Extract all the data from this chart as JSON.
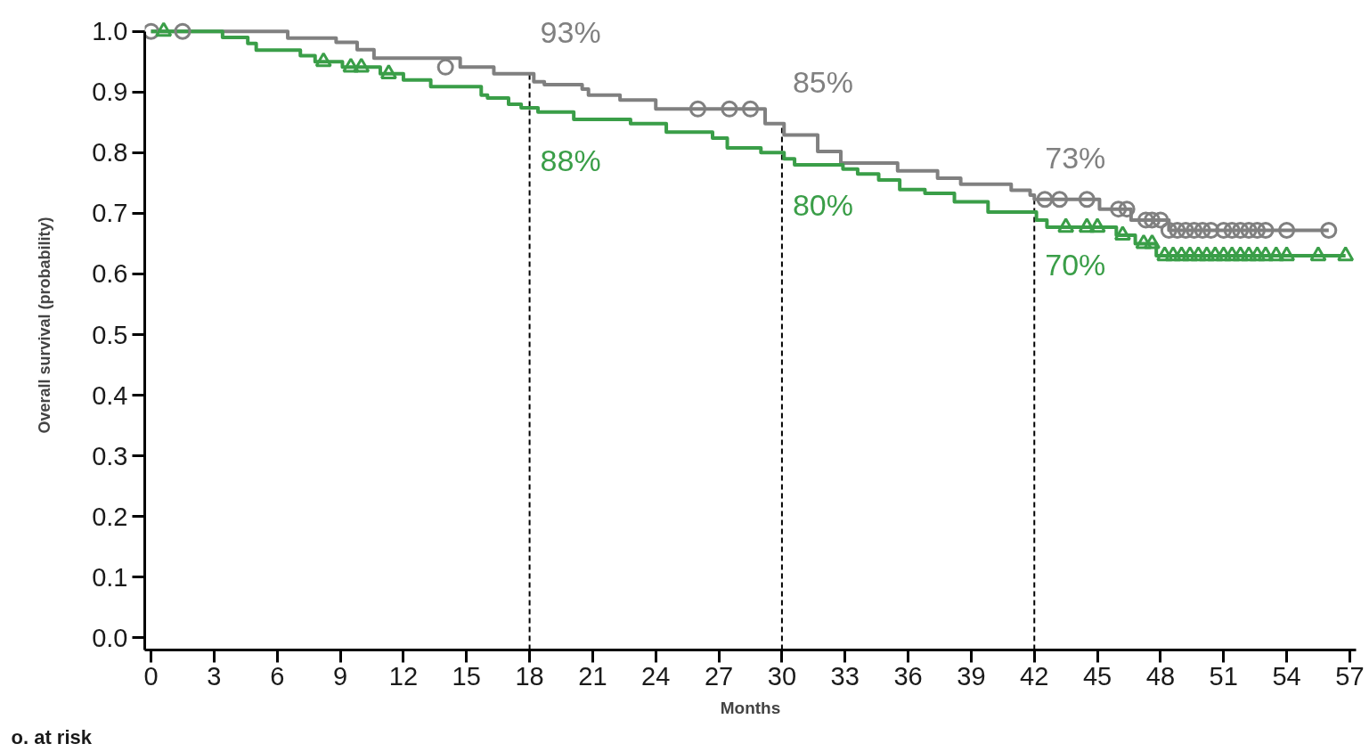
{
  "chart_data": {
    "type": "step",
    "xlabel": "Months",
    "ylabel": "Overall survival (probability)",
    "xlim": [
      -0.3,
      57.3
    ],
    "ylim": [
      -0.02,
      1.0
    ],
    "xticks": [
      0,
      3,
      6,
      9,
      12,
      15,
      18,
      21,
      24,
      27,
      30,
      33,
      36,
      39,
      42,
      45,
      48,
      51,
      54,
      57
    ],
    "yticks": [
      {
        "value": 0,
        "label": "0.0"
      },
      {
        "value": 0.1,
        "label": "0.1"
      },
      {
        "value": 0.2,
        "label": "0.2"
      },
      {
        "value": 0.3,
        "label": "0.3"
      },
      {
        "value": 0.4,
        "label": "0.4"
      },
      {
        "value": 0.5,
        "label": "0.5"
      },
      {
        "value": 0.6,
        "label": "0.6"
      },
      {
        "value": 0.7,
        "label": "0.7"
      },
      {
        "value": 0.8,
        "label": "0.8"
      },
      {
        "value": 0.9,
        "label": "0.9"
      },
      {
        "value": 1.0,
        "label": "1.0"
      }
    ],
    "grid": false,
    "series": [
      {
        "type": "step",
        "color": "#808080",
        "x": [
          0,
          6.5,
          8.8,
          9.8,
          10.6,
          14.7,
          16.3,
          18.2,
          18.7,
          20.5,
          20.8,
          22.3,
          24.0,
          29.2,
          30.1,
          31.7,
          32.8,
          35.5,
          37.4,
          38.5,
          40.9,
          41.8,
          42.0,
          45.1,
          46.6,
          48.4,
          56.0
        ],
        "values": [
          1.0,
          0.989,
          0.982,
          0.97,
          0.956,
          0.941,
          0.93,
          0.917,
          0.912,
          0.905,
          0.895,
          0.887,
          0.872,
          0.848,
          0.829,
          0.802,
          0.783,
          0.77,
          0.758,
          0.748,
          0.738,
          0.73,
          0.723,
          0.707,
          0.689,
          0.672,
          0.672
        ]
      },
      {
        "type": "step",
        "color": "#3a9e48",
        "x": [
          0,
          3.4,
          4.6,
          5.0,
          7.1,
          7.8,
          9.1,
          10.9,
          12.0,
          13.3,
          15.7,
          16.0,
          17.0,
          17.6,
          18.4,
          20.1,
          22.8,
          24.5,
          26.7,
          27.4,
          29.0,
          30.1,
          30.6,
          32.9,
          33.6,
          34.6,
          35.6,
          36.8,
          38.2,
          39.8,
          42.1,
          42.6,
          45.9,
          46.8,
          47.8,
          56.8
        ],
        "values": [
          1.0,
          0.99,
          0.98,
          0.969,
          0.96,
          0.95,
          0.941,
          0.93,
          0.92,
          0.909,
          0.895,
          0.89,
          0.88,
          0.874,
          0.867,
          0.855,
          0.848,
          0.834,
          0.824,
          0.808,
          0.8,
          0.79,
          0.78,
          0.773,
          0.765,
          0.755,
          0.739,
          0.733,
          0.719,
          0.702,
          0.689,
          0.677,
          0.664,
          0.65,
          0.63,
          0.63
        ]
      },
      {
        "type": "scatter",
        "marker": "circle",
        "color": "#808080",
        "x": [
          0,
          1.5,
          14,
          26,
          27.5,
          28.5,
          42.5,
          43.2,
          44.5,
          46,
          46.4,
          47.3,
          47.6,
          48,
          48.4,
          48.8,
          49.2,
          49.6,
          50,
          50.4,
          51,
          51.4,
          51.8,
          52.2,
          52.6,
          53,
          54,
          56
        ],
        "values": [
          1.0,
          1.0,
          0.941,
          0.872,
          0.872,
          0.872,
          0.723,
          0.723,
          0.723,
          0.707,
          0.707,
          0.689,
          0.689,
          0.689,
          0.672,
          0.672,
          0.672,
          0.672,
          0.672,
          0.672,
          0.672,
          0.672,
          0.672,
          0.672,
          0.672,
          0.672,
          0.672,
          0.672
        ]
      },
      {
        "type": "scatter",
        "marker": "triangle",
        "color": "#3a9e48",
        "x": [
          0.6,
          8.2,
          9.5,
          10,
          11.3,
          43.5,
          44.5,
          45,
          46.2,
          47.2,
          47.6,
          48.2,
          48.6,
          49,
          49.4,
          49.8,
          50.2,
          50.6,
          51,
          51.4,
          51.8,
          52.2,
          52.6,
          53,
          53.5,
          54,
          55.5,
          56.8
        ],
        "values": [
          1.0,
          0.95,
          0.941,
          0.941,
          0.93,
          0.677,
          0.677,
          0.677,
          0.664,
          0.65,
          0.65,
          0.63,
          0.63,
          0.63,
          0.63,
          0.63,
          0.63,
          0.63,
          0.63,
          0.63,
          0.63,
          0.63,
          0.63,
          0.63,
          0.63,
          0.63,
          0.63,
          0.63
        ]
      }
    ],
    "ref_lines": [
      {
        "axis": "x",
        "value": 18,
        "color": "#000000",
        "line_style": "dashed"
      },
      {
        "axis": "x",
        "value": 30,
        "color": "#000000",
        "line_style": "dashed"
      },
      {
        "axis": "x",
        "value": 42,
        "color": "#000000",
        "line_style": "dashed"
      }
    ],
    "annotations": [
      {
        "text": "93%",
        "x": 18,
        "y": 0.93
      },
      {
        "text": "88%",
        "x": 18,
        "y": 0.874
      },
      {
        "text": "85%",
        "x": 30,
        "y": 0.848
      },
      {
        "text": "80%",
        "x": 30,
        "y": 0.8
      },
      {
        "text": "73%",
        "x": 42,
        "y": 0.723
      },
      {
        "text": "70%",
        "x": 42,
        "y": 0.702
      },
      "o. at risk"
    ]
  }
}
